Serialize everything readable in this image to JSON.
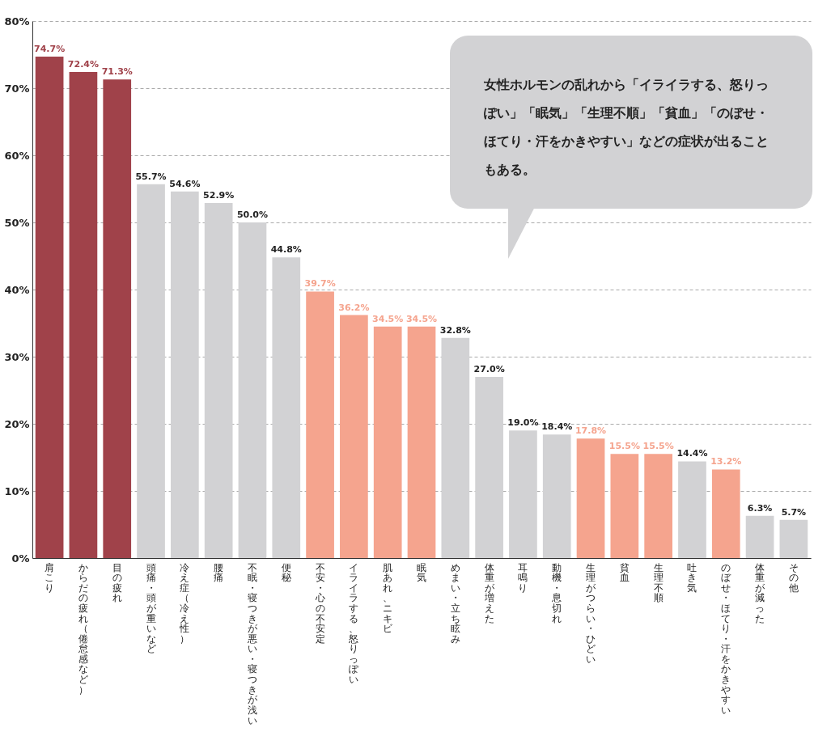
{
  "chart_data": {
    "type": "bar",
    "categories": [
      "肩こり",
      "からだの疲れ（倦怠感など）",
      "目の疲れ",
      "頭痛・頭が重いなど",
      "冷え症（冷え性）",
      "腰痛",
      "不眠・寝つきが悪い・寝つきが浅い",
      "便秘",
      "不安・心の不安定",
      "イライラする、怒りっぽい",
      "肌あれ、ニキビ",
      "眠気",
      "めまい・立ち眩み",
      "体重が増えた",
      "耳鳴り",
      "動機・息切れ",
      "生理がつらい・ひどい",
      "貧血",
      "生理不順",
      "吐き気",
      "のぼせ・ほてり・汗をかきやすい",
      "体重が減った",
      "その他"
    ],
    "values": [
      74.7,
      72.4,
      71.3,
      55.7,
      54.6,
      52.9,
      50.0,
      44.8,
      39.7,
      36.2,
      34.5,
      34.5,
      32.8,
      27.0,
      19.0,
      18.4,
      17.8,
      15.5,
      15.5,
      14.4,
      13.2,
      6.3,
      5.7
    ],
    "value_labels": [
      "74.7%",
      "72.4%",
      "71.3%",
      "55.7%",
      "54.6%",
      "52.9%",
      "50.0%",
      "44.8%",
      "39.7%",
      "36.2%",
      "34.5%",
      "34.5%",
      "32.8%",
      "27.0%",
      "19.0%",
      "18.4%",
      "17.8%",
      "15.5%",
      "15.5%",
      "14.4%",
      "13.2%",
      "6.3%",
      "5.7%"
    ],
    "colors": [
      "#a0424a",
      "#a0424a",
      "#a0424a",
      "#d2d2d4",
      "#d2d2d4",
      "#d2d2d4",
      "#d2d2d4",
      "#d2d2d4",
      "#f5a48e",
      "#f5a48e",
      "#f5a48e",
      "#f5a48e",
      "#d2d2d4",
      "#d2d2d4",
      "#d2d2d4",
      "#d2d2d4",
      "#f5a48e",
      "#f5a48e",
      "#f5a48e",
      "#d2d2d4",
      "#f5a48e",
      "#d2d2d4",
      "#d2d2d4"
    ],
    "ylim": [
      0,
      80
    ],
    "yticks": [
      {
        "value": 0,
        "label": "0%"
      },
      {
        "value": 10,
        "label": "10%"
      },
      {
        "value": 20,
        "label": "20%"
      },
      {
        "value": 30,
        "label": "30%"
      },
      {
        "value": 40,
        "label": "40%"
      },
      {
        "value": 50,
        "label": "50%"
      },
      {
        "value": 60,
        "label": "60%"
      },
      {
        "value": 70,
        "label": "70%"
      },
      {
        "value": 80,
        "label": "80%"
      }
    ],
    "grid": "y",
    "annotations": [
      "女性ホルモンの乱れから「イライラする、怒りっぽい」「眠気」「生理不順」「貧血」「のぼせ・ほてり・汗をかきやすい」などの症状が出ることもある。"
    ]
  }
}
